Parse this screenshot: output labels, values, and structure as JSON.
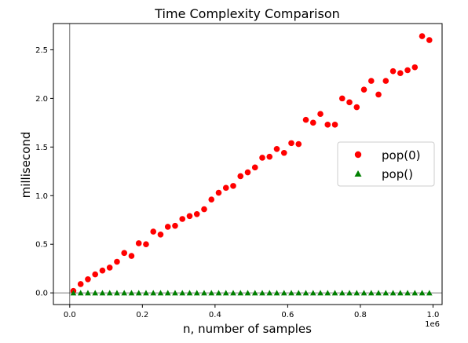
{
  "chart_data": {
    "type": "scatter",
    "title": "Time Complexity Comparison",
    "xlabel": "n, number of samples",
    "ylabel": "millisecond",
    "x_offset_text": "1e6",
    "xlim": [
      -0.045,
      1.025
    ],
    "ylim": [
      -0.12,
      2.77
    ],
    "xticks": [
      0.0,
      0.2,
      0.4,
      0.6,
      0.8,
      1.0
    ],
    "xtick_labels": [
      "0.0",
      "0.2",
      "0.4",
      "0.6",
      "0.8",
      "1.0"
    ],
    "yticks": [
      0.0,
      0.5,
      1.0,
      1.5,
      2.0,
      2.5
    ],
    "ytick_labels": [
      "0.0",
      "0.5",
      "1.0",
      "1.5",
      "2.0",
      "2.5"
    ],
    "grid": false,
    "reference_lines": {
      "x": 0,
      "y": 0
    },
    "legend_position": "center-right",
    "x": [
      0.01,
      0.03,
      0.05,
      0.07,
      0.09,
      0.11,
      0.13,
      0.15,
      0.17,
      0.19,
      0.21,
      0.23,
      0.25,
      0.27,
      0.29,
      0.31,
      0.33,
      0.35,
      0.37,
      0.39,
      0.41,
      0.43,
      0.45,
      0.47,
      0.49,
      0.51,
      0.53,
      0.55,
      0.57,
      0.59,
      0.61,
      0.63,
      0.65,
      0.67,
      0.69,
      0.71,
      0.73,
      0.75,
      0.77,
      0.79,
      0.81,
      0.83,
      0.85,
      0.87,
      0.89,
      0.91,
      0.93,
      0.95,
      0.97,
      0.99
    ],
    "series": [
      {
        "name": "pop(0)",
        "color": "#ff0000",
        "marker": "circle",
        "values": [
          0.02,
          0.09,
          0.14,
          0.19,
          0.23,
          0.26,
          0.32,
          0.41,
          0.38,
          0.51,
          0.5,
          0.63,
          0.6,
          0.68,
          0.69,
          0.76,
          0.79,
          0.81,
          0.86,
          0.96,
          1.03,
          1.08,
          1.1,
          1.2,
          1.24,
          1.29,
          1.39,
          1.4,
          1.48,
          1.44,
          1.54,
          1.53,
          1.78,
          1.75,
          1.84,
          1.73,
          1.73,
          2.0,
          1.96,
          1.91,
          2.09,
          2.18,
          2.04,
          2.18,
          2.28,
          2.26,
          2.29,
          2.32,
          2.64,
          2.6
        ]
      },
      {
        "name": "pop()",
        "color": "#008000",
        "marker": "triangle",
        "values": [
          0.0,
          0.0,
          0.0,
          0.0,
          0.0,
          0.0,
          0.0,
          0.0,
          0.0,
          0.0,
          0.0,
          0.0,
          0.0,
          0.0,
          0.0,
          0.0,
          0.0,
          0.0,
          0.0,
          0.0,
          0.0,
          0.0,
          0.0,
          0.0,
          0.0,
          0.0,
          0.0,
          0.0,
          0.0,
          0.0,
          0.0,
          0.0,
          0.0,
          0.0,
          0.0,
          0.0,
          0.0,
          0.0,
          0.0,
          0.0,
          0.0,
          0.0,
          0.0,
          0.0,
          0.0,
          0.0,
          0.0,
          0.0,
          0.0,
          0.0
        ]
      }
    ]
  }
}
